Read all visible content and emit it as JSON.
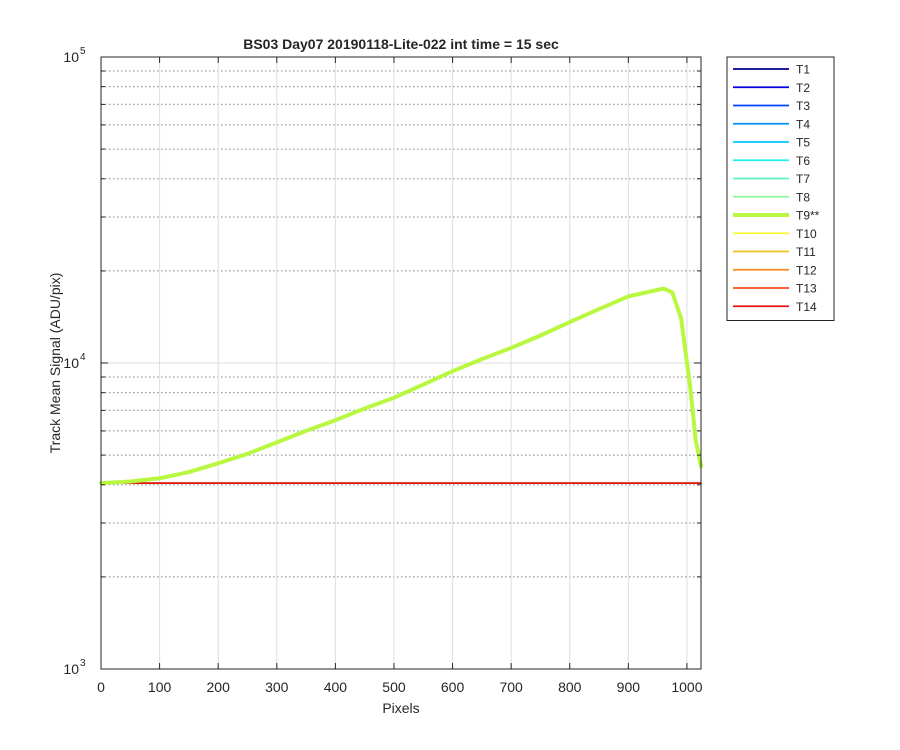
{
  "chart_data": {
    "type": "line",
    "title": "BS03 Day07 20190118-Lite-022 int time = 15 sec",
    "xlabel": "Pixels",
    "ylabel": "Track Mean Signal (ADU/pix)",
    "xlim": [
      0,
      1024
    ],
    "ylim": [
      1000,
      100000
    ],
    "yscale": "log",
    "grid": true,
    "minor_grid": true,
    "legend_position": "outside-top-right",
    "x_ticks": [
      0,
      100,
      200,
      300,
      400,
      500,
      600,
      700,
      800,
      900,
      1000
    ],
    "x_tick_labels": [
      "0",
      "100",
      "200",
      "300",
      "400",
      "500",
      "600",
      "700",
      "800",
      "900",
      "1000"
    ],
    "y_ticks": [
      1000,
      10000,
      100000
    ],
    "y_tick_labels": [
      {
        "base": "10",
        "exp": "3"
      },
      {
        "base": "10",
        "exp": "4"
      },
      {
        "base": "10",
        "exp": "5"
      }
    ],
    "series": [
      {
        "name": "T1",
        "color": "#00008f",
        "width": 1.5,
        "x": [
          0,
          1024
        ],
        "y": [
          4050,
          4050
        ]
      },
      {
        "name": "T2",
        "color": "#0000df",
        "width": 1.5,
        "x": [
          0,
          1024
        ],
        "y": [
          4050,
          4050
        ]
      },
      {
        "name": "T3",
        "color": "#0040ff",
        "width": 1.5,
        "x": [
          0,
          1024
        ],
        "y": [
          4050,
          4050
        ]
      },
      {
        "name": "T4",
        "color": "#0090ff",
        "width": 1.5,
        "x": [
          0,
          1024
        ],
        "y": [
          4050,
          4050
        ]
      },
      {
        "name": "T5",
        "color": "#00c8ff",
        "width": 1.5,
        "x": [
          0,
          1024
        ],
        "y": [
          4050,
          4050
        ]
      },
      {
        "name": "T6",
        "color": "#20f0f0",
        "width": 1.5,
        "x": [
          0,
          1024
        ],
        "y": [
          4050,
          4050
        ]
      },
      {
        "name": "T7",
        "color": "#60f0c8",
        "width": 1.5,
        "x": [
          0,
          1024
        ],
        "y": [
          4050,
          4050
        ]
      },
      {
        "name": "T8",
        "color": "#90f898",
        "width": 1.5,
        "x": [
          0,
          1024
        ],
        "y": [
          4050,
          4050
        ]
      },
      {
        "name": "T9**",
        "color": "#b8f840",
        "width": 4,
        "highlight": true,
        "x": [
          0,
          50,
          100,
          150,
          200,
          250,
          300,
          350,
          400,
          450,
          500,
          550,
          600,
          650,
          700,
          750,
          800,
          850,
          900,
          930,
          960,
          975,
          990,
          1005,
          1015,
          1024
        ],
        "y": [
          4050,
          4100,
          4200,
          4400,
          4700,
          5050,
          5500,
          6000,
          6500,
          7100,
          7700,
          8500,
          9400,
          10300,
          11200,
          12300,
          13600,
          15000,
          16500,
          17000,
          17500,
          17000,
          14000,
          8500,
          5600,
          4600
        ]
      },
      {
        "name": "T10",
        "color": "#f8f838",
        "width": 1.5,
        "x": [
          0,
          1024
        ],
        "y": [
          4050,
          4050
        ]
      },
      {
        "name": "T11",
        "color": "#f0c020",
        "width": 1.5,
        "x": [
          0,
          1024
        ],
        "y": [
          4050,
          4050
        ]
      },
      {
        "name": "T12",
        "color": "#ff8c1a",
        "width": 1.5,
        "x": [
          0,
          1024
        ],
        "y": [
          4050,
          4050
        ]
      },
      {
        "name": "T13",
        "color": "#ff4a1a",
        "width": 1.5,
        "x": [
          0,
          1024
        ],
        "y": [
          4050,
          4050
        ]
      },
      {
        "name": "T14",
        "color": "#e81010",
        "width": 1.5,
        "x": [
          0,
          1024
        ],
        "y": [
          4050,
          4050
        ]
      }
    ]
  }
}
